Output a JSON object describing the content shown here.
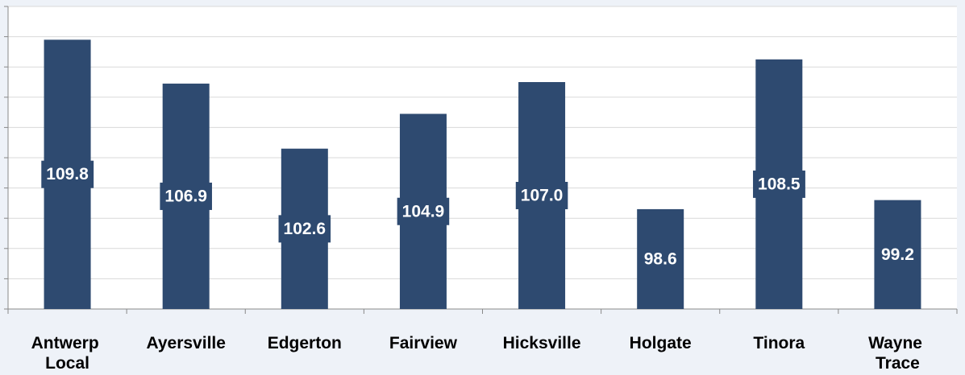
{
  "chart_data": {
    "type": "bar",
    "categories": [
      "Antwerp Local",
      "Ayersville",
      "Edgerton",
      "Fairview",
      "Hicksville",
      "Holgate",
      "Tinora",
      "Wayne Trace"
    ],
    "values": [
      109.8,
      106.9,
      102.6,
      104.9,
      107.0,
      98.6,
      108.5,
      99.2
    ],
    "value_labels": [
      "109.8",
      "106.9",
      "102.6",
      "104.9",
      "107.0",
      "98.6",
      "108.5",
      "99.2"
    ],
    "color": "#2e4a70",
    "ylim": [
      92,
      112
    ],
    "yticks": [
      92,
      94,
      96,
      98,
      100,
      102,
      104,
      106,
      108,
      110,
      112
    ],
    "grid": true
  }
}
